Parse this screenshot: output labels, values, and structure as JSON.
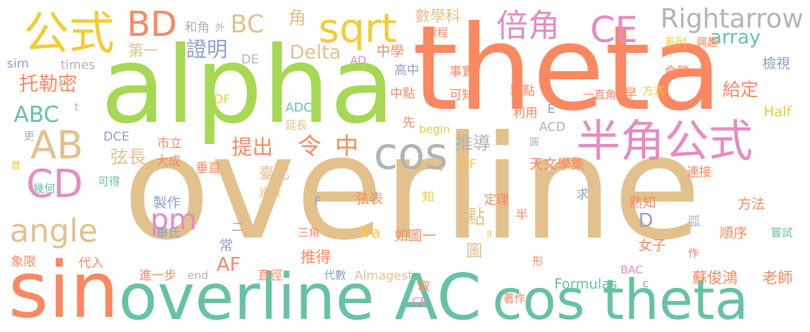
{
  "palette": {
    "orange": "#FB8860",
    "tan": "#E3C18D",
    "green": "#66C2A5",
    "lime": "#A6D854",
    "pink": "#E78AC3",
    "blue": "#8DA0CB",
    "yellow": "#F3CB33",
    "gray": "#B3B3B3"
  },
  "words": [
    "overline",
    "theta",
    "alpha",
    "sin",
    "overline AC",
    "cos theta",
    "半角公式",
    "公式",
    "BD",
    "sqrt",
    "倍角",
    "CE",
    "Rightarrow",
    "array",
    "cos",
    "AB",
    "CD",
    "angle",
    "pm",
    "ABC",
    "托勒密",
    "證明",
    "Delta",
    "BC",
    "角",
    "和角",
    "外",
    "第一",
    "DE",
    "sim",
    "times",
    "AD",
    "中學",
    "給定",
    "系列",
    "興趣",
    "檢視",
    "數學科",
    "課程",
    "高中",
    "事實",
    "中點",
    "可知",
    "取點",
    "一直角",
    "早",
    "方式",
    "命題",
    "推導",
    "弦長",
    "市立",
    "大成",
    "提出",
    "令",
    "中",
    "DF",
    "ADC",
    "t",
    "延長",
    "DCE",
    "利用",
    "E",
    "Half",
    "ACD",
    "先",
    "begin",
    "更",
    "首",
    "幾何",
    "可得",
    "垂直",
    "臺北",
    "讀者",
    "CF",
    "天文學集",
    "圓",
    "連接",
    "F",
    "弦表",
    "知",
    "點",
    "圖",
    "定理",
    "半",
    "求",
    "熟知",
    "方法",
    "製作",
    "畢氏",
    "二",
    "常",
    "三角",
    "fra",
    "如圖一",
    "弧",
    "順序",
    "嘗試",
    "D",
    "女子",
    "象限",
    "代入",
    "AF",
    "推得",
    "形",
    "作",
    "BAC",
    "蘇俊鴻",
    "老師",
    "進一步",
    "end",
    "直徑",
    "代數",
    "Almagest",
    "取",
    "著作",
    "Formulas",
    "c",
    "CB",
    "ll"
  ]
}
